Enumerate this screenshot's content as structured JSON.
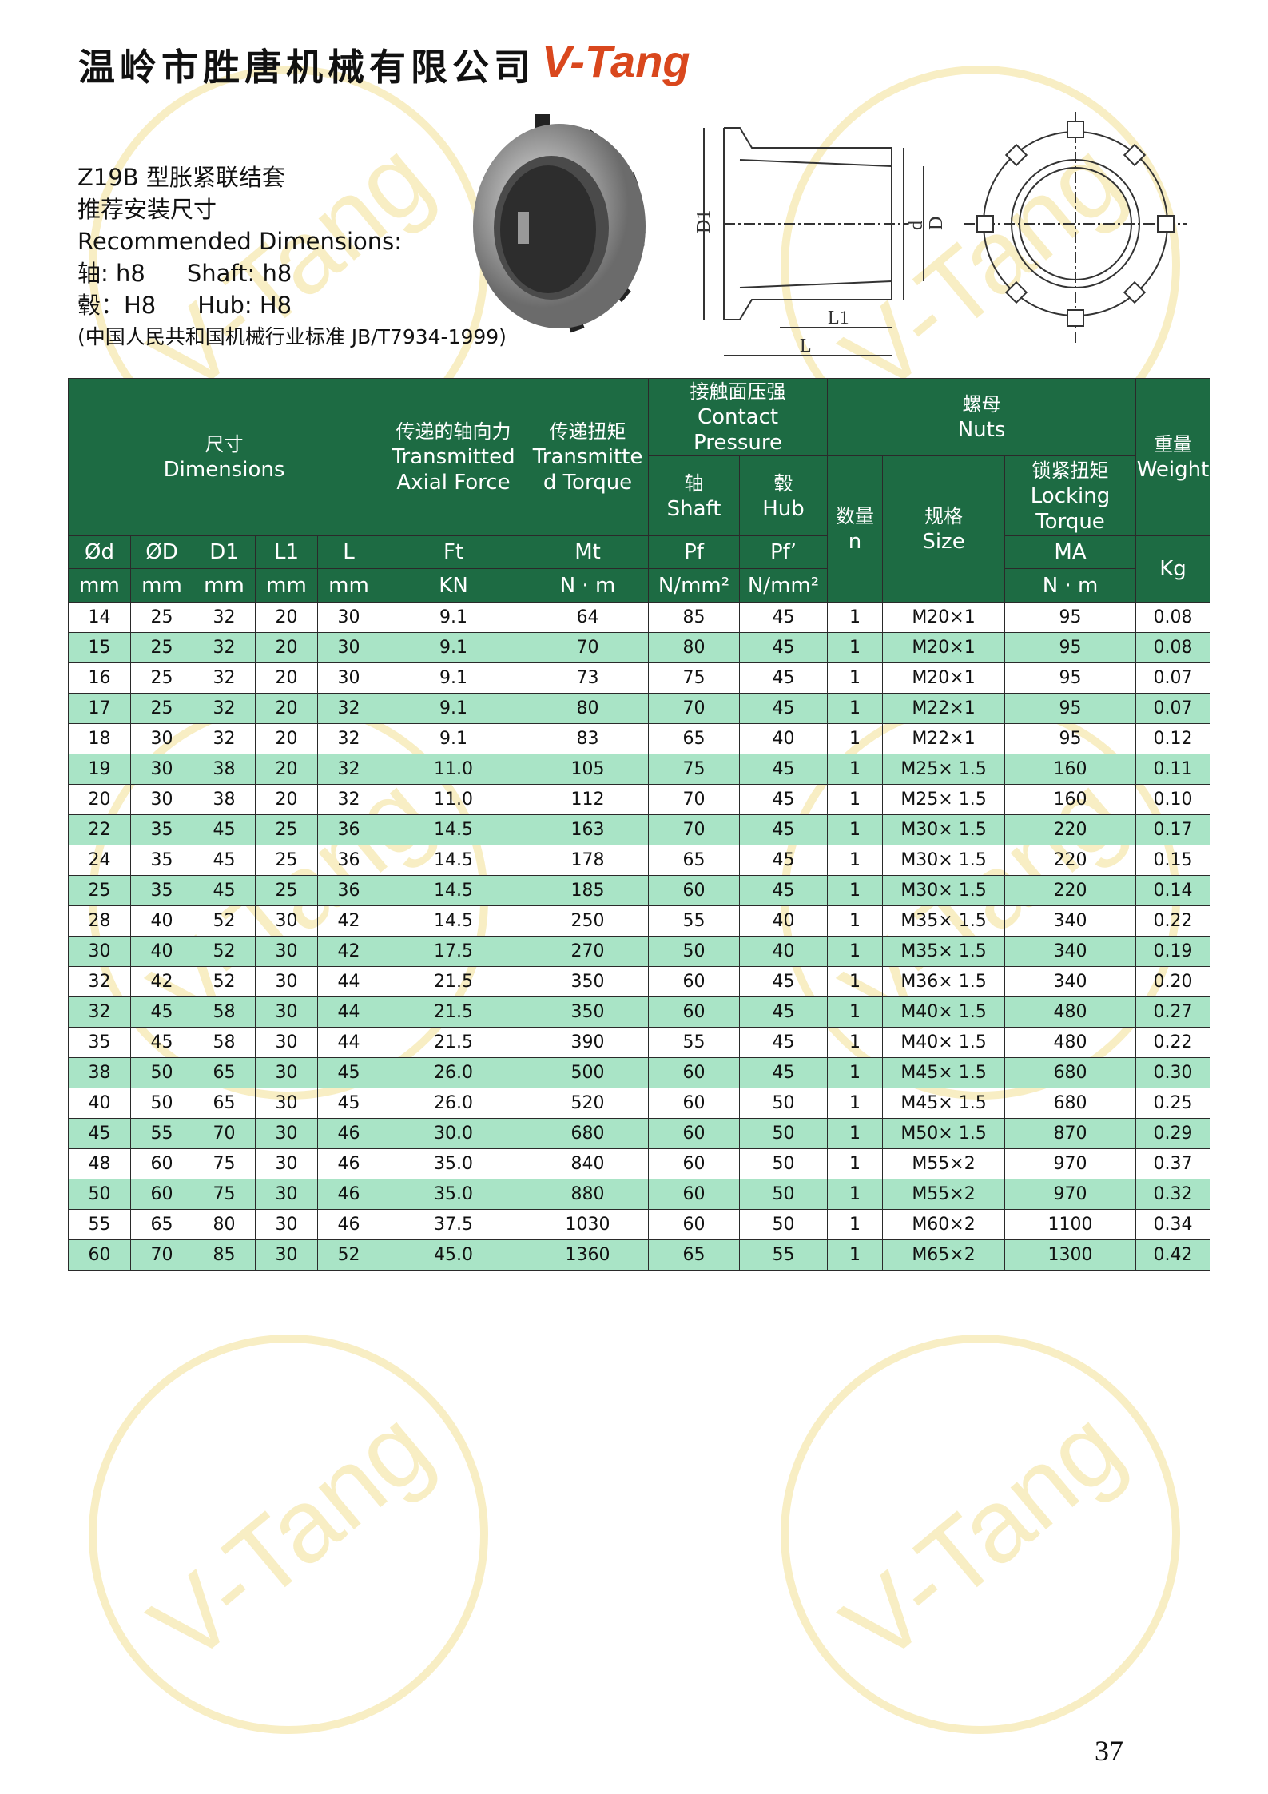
{
  "header": {
    "company": "温岭市胜唐机械有限公司",
    "logo": "V-Tang"
  },
  "intro": {
    "title_zh": "Z19B 型胀紧联结套",
    "subtitle_zh": "推荐安装尺寸",
    "title_en": "Recommended Dimensions:",
    "shaft_zh": "轴: h8",
    "shaft_en": "Shaft: h8",
    "hub_zh": "毂：H8",
    "hub_en": "Hub: H8",
    "standard": "(中国人民共和国机械行业标准 JB/T7934-1999)"
  },
  "drawing": {
    "labels": [
      "D1",
      "d",
      "D",
      "L1",
      "L"
    ]
  },
  "table": {
    "dimensions": [
      "尺寸",
      "Dimensions"
    ],
    "axial_force": [
      "传递的轴向力",
      "Transmitted",
      "Axial Force"
    ],
    "torque": [
      "传递扭矩",
      "Transmitte",
      "d Torque"
    ],
    "contact_pressure": [
      "接触面压强",
      "Contact",
      "Pressure"
    ],
    "shaft": [
      "轴",
      "Shaft"
    ],
    "hub": [
      "毂",
      "Hub"
    ],
    "nuts": [
      "螺母",
      "Nuts"
    ],
    "quantity": [
      "数量",
      "n"
    ],
    "size": [
      "规格",
      "Size"
    ],
    "locking_torque": [
      "锁紧扭矩",
      "Locking",
      "Torque"
    ],
    "weight": [
      "重量",
      "Weight"
    ],
    "symbols": [
      "Ød",
      "ØD",
      "D1",
      "L1",
      "L",
      "Ft",
      "Mt",
      "Pf",
      "Pf’",
      "MA"
    ],
    "weight_unit": "Kg",
    "units": [
      "mm",
      "mm",
      "mm",
      "mm",
      "mm",
      "KN",
      "N · m",
      "N/mm²",
      "N/mm²",
      "N · m"
    ],
    "rows": [
      [
        "14",
        "25",
        "32",
        "20",
        "30",
        "9.1",
        "64",
        "85",
        "45",
        "1",
        "M20×1",
        "95",
        "0.08"
      ],
      [
        "15",
        "25",
        "32",
        "20",
        "30",
        "9.1",
        "70",
        "80",
        "45",
        "1",
        "M20×1",
        "95",
        "0.08"
      ],
      [
        "16",
        "25",
        "32",
        "20",
        "30",
        "9.1",
        "73",
        "75",
        "45",
        "1",
        "M20×1",
        "95",
        "0.07"
      ],
      [
        "17",
        "25",
        "32",
        "20",
        "32",
        "9.1",
        "80",
        "70",
        "45",
        "1",
        "M22×1",
        "95",
        "0.07"
      ],
      [
        "18",
        "30",
        "32",
        "20",
        "32",
        "9.1",
        "83",
        "65",
        "40",
        "1",
        "M22×1",
        "95",
        "0.12"
      ],
      [
        "19",
        "30",
        "38",
        "20",
        "32",
        "11.0",
        "105",
        "75",
        "45",
        "1",
        "M25× 1.5",
        "160",
        "0.11"
      ],
      [
        "20",
        "30",
        "38",
        "20",
        "32",
        "11.0",
        "112",
        "70",
        "45",
        "1",
        "M25× 1.5",
        "160",
        "0.10"
      ],
      [
        "22",
        "35",
        "45",
        "25",
        "36",
        "14.5",
        "163",
        "70",
        "45",
        "1",
        "M30× 1.5",
        "220",
        "0.17"
      ],
      [
        "24",
        "35",
        "45",
        "25",
        "36",
        "14.5",
        "178",
        "65",
        "45",
        "1",
        "M30× 1.5",
        "220",
        "0.15"
      ],
      [
        "25",
        "35",
        "45",
        "25",
        "36",
        "14.5",
        "185",
        "60",
        "45",
        "1",
        "M30× 1.5",
        "220",
        "0.14"
      ],
      [
        "28",
        "40",
        "52",
        "30",
        "42",
        "14.5",
        "250",
        "55",
        "40",
        "1",
        "M35× 1.5",
        "340",
        "0.22"
      ],
      [
        "30",
        "40",
        "52",
        "30",
        "42",
        "17.5",
        "270",
        "50",
        "40",
        "1",
        "M35× 1.5",
        "340",
        "0.19"
      ],
      [
        "32",
        "42",
        "52",
        "30",
        "44",
        "21.5",
        "350",
        "60",
        "45",
        "1",
        "M36× 1.5",
        "340",
        "0.20"
      ],
      [
        "32",
        "45",
        "58",
        "30",
        "44",
        "21.5",
        "350",
        "60",
        "45",
        "1",
        "M40× 1.5",
        "480",
        "0.27"
      ],
      [
        "35",
        "45",
        "58",
        "30",
        "44",
        "21.5",
        "390",
        "55",
        "45",
        "1",
        "M40× 1.5",
        "480",
        "0.22"
      ],
      [
        "38",
        "50",
        "65",
        "30",
        "45",
        "26.0",
        "500",
        "60",
        "45",
        "1",
        "M45× 1.5",
        "680",
        "0.30"
      ],
      [
        "40",
        "50",
        "65",
        "30",
        "45",
        "26.0",
        "520",
        "60",
        "50",
        "1",
        "M45× 1.5",
        "680",
        "0.25"
      ],
      [
        "45",
        "55",
        "70",
        "30",
        "46",
        "30.0",
        "680",
        "60",
        "50",
        "1",
        "M50× 1.5",
        "870",
        "0.29"
      ],
      [
        "48",
        "60",
        "75",
        "30",
        "46",
        "35.0",
        "840",
        "60",
        "50",
        "1",
        "M55×2",
        "970",
        "0.37"
      ],
      [
        "50",
        "60",
        "75",
        "30",
        "46",
        "35.0",
        "880",
        "60",
        "50",
        "1",
        "M55×2",
        "970",
        "0.32"
      ],
      [
        "55",
        "65",
        "80",
        "30",
        "46",
        "37.5",
        "1030",
        "60",
        "50",
        "1",
        "M60×2",
        "1100",
        "0.34"
      ],
      [
        "60",
        "70",
        "85",
        "30",
        "52",
        "45.0",
        "1360",
        "65",
        "55",
        "1",
        "M65×2",
        "1300",
        "0.42"
      ]
    ]
  },
  "page_number": "37",
  "watermark": "V-Tang"
}
